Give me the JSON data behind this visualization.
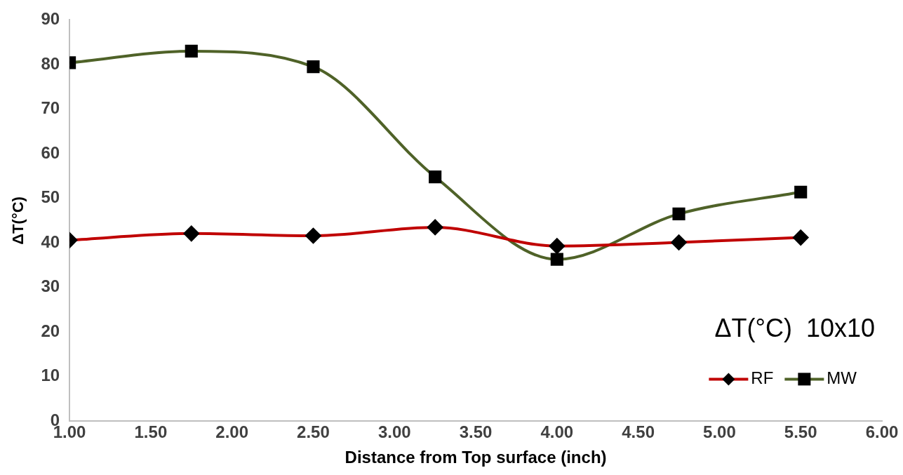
{
  "chart_data": {
    "type": "line",
    "title": "ΔT(°C)  10x10",
    "xlabel": "Distance from Top surface (inch)",
    "ylabel": "ΔT(°C)",
    "x": [
      1.0,
      1.75,
      2.5,
      3.25,
      4.0,
      4.75,
      5.5
    ],
    "series": [
      {
        "name": "RF",
        "color": "#c00000",
        "marker": "diamond",
        "values": [
          40.6,
          42.1,
          41.6,
          43.5,
          39.3,
          40.1,
          41.2
        ]
      },
      {
        "name": "MW",
        "color": "#4f6228",
        "marker": "square",
        "values": [
          80.4,
          83.0,
          79.5,
          54.8,
          36.3,
          46.5,
          51.4
        ]
      }
    ],
    "xlim": [
      1,
      6
    ],
    "xticks": [
      {
        "value": 1,
        "label": "1.00"
      },
      {
        "value": 1.5,
        "label": "1.50"
      },
      {
        "value": 2,
        "label": "2.00"
      },
      {
        "value": 2.5,
        "label": "2.50"
      },
      {
        "value": 3,
        "label": "3.00"
      },
      {
        "value": 3.5,
        "label": "3.50"
      },
      {
        "value": 4,
        "label": "4.00"
      },
      {
        "value": 4.5,
        "label": "4.50"
      },
      {
        "value": 5,
        "label": "5.00"
      },
      {
        "value": 5.5,
        "label": "5.50"
      },
      {
        "value": 6,
        "label": "6.00"
      }
    ],
    "ylim": [
      0,
      90
    ],
    "yticks": [
      0,
      10,
      20,
      30,
      40,
      50,
      60,
      70,
      80,
      90
    ],
    "grid": false,
    "legend": "bottom right",
    "line_style": "solid"
  }
}
